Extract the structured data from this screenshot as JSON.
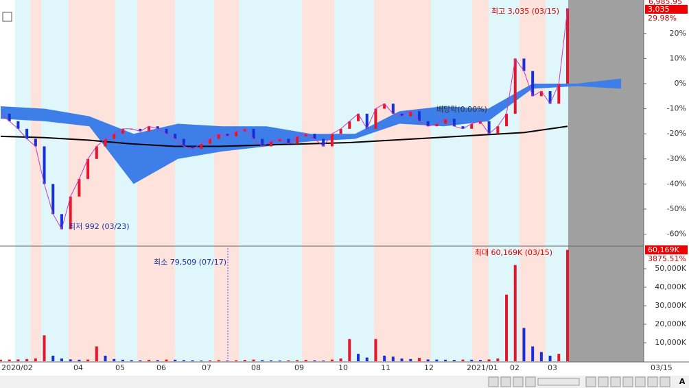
{
  "price_panel": {
    "high_note": "최고 3,035 (03/15)",
    "low_note": "최저 992 (03/23)",
    "dividend_note": "배당락(0.00%)",
    "axis_top_labels": [
      "6,985.95",
      "3,035",
      "29.98%"
    ],
    "ylim": [
      -65,
      33
    ],
    "yticks": [
      {
        "value": 20,
        "label": "20%"
      },
      {
        "value": 10,
        "label": "10%"
      },
      {
        "value": 0,
        "label": "0%"
      },
      {
        "value": -10,
        "label": "-10%"
      },
      {
        "value": -20,
        "label": "-20%"
      },
      {
        "value": -30,
        "label": "-30%"
      },
      {
        "value": -40,
        "label": "-40%"
      },
      {
        "value": -50,
        "label": "-50%"
      },
      {
        "value": -60,
        "label": "-60%"
      }
    ],
    "close": [
      -12,
      -15,
      -18,
      -22,
      -25,
      -40,
      -52,
      -58,
      -45,
      -38,
      -30,
      -25,
      -22,
      -20,
      -18,
      -18,
      -19,
      -17,
      -18,
      -20,
      -22,
      -25,
      -26,
      -24,
      -22,
      -20,
      -21,
      -19,
      -18,
      -22,
      -25,
      -23,
      -22,
      -24,
      -21,
      -20,
      -22,
      -25,
      -20,
      -18,
      -15,
      -12,
      -18,
      -10,
      -8,
      -12,
      -13,
      -11,
      -15,
      -17,
      -16,
      -14,
      -17,
      -18,
      -16,
      -15,
      -20,
      -17,
      -12,
      10,
      5,
      -5,
      -3,
      -8,
      0,
      29.98
    ],
    "moving_average": [
      -21,
      -21.5,
      -22.5,
      -24,
      -25,
      -25,
      -24.5,
      -24,
      -23.5,
      -22.5,
      -21.5,
      -20.5,
      -19.5,
      -17
    ],
    "cloud_upper": [
      -9,
      -10,
      -13,
      -20,
      -16,
      -17,
      -17,
      -20,
      -20,
      -11,
      -9,
      -10,
      0,
      0,
      2
    ],
    "cloud_lower": [
      -14,
      -15,
      -17,
      -40,
      -30,
      -27,
      -25,
      -23,
      -22,
      -16,
      -17,
      -15,
      -2,
      -1,
      -2
    ]
  },
  "volume_panel": {
    "max_note": "최대 60,169K (03/15)",
    "min_note": "최소 79,509 (07/17)",
    "axis_top_labels": [
      "60,169K",
      "3875.51%"
    ],
    "ylim": [
      0,
      61500
    ],
    "yticks": [
      {
        "value": 50000,
        "label": "50,000K"
      },
      {
        "value": 40000,
        "label": "40,000K"
      },
      {
        "value": 30000,
        "label": "30,000K"
      },
      {
        "value": 20000,
        "label": "20,000K"
      },
      {
        "value": 10000,
        "label": "10,000K"
      }
    ],
    "volume": [
      800,
      900,
      1000,
      1200,
      1500,
      14000,
      3000,
      1500,
      1000,
      800,
      900,
      8000,
      3000,
      1200,
      800,
      600,
      500,
      700,
      600,
      900,
      800,
      600,
      500,
      400,
      500,
      600,
      400,
      500,
      700,
      900,
      600,
      500,
      400,
      500,
      600,
      700,
      500,
      400,
      900,
      1500,
      12000,
      4000,
      2000,
      12000,
      3000,
      2500,
      1500,
      1200,
      1800,
      1000,
      900,
      800,
      700,
      900,
      800,
      700,
      1000,
      1500,
      36000,
      52000,
      18000,
      8000,
      5000,
      3000,
      4000,
      60169
    ]
  },
  "x_axis": {
    "labels": [
      "2020/02",
      "04",
      "05",
      "06",
      "07",
      "08",
      "09",
      "10",
      "11",
      "12",
      "2021/01",
      "02",
      "03"
    ],
    "last_date": "03/15"
  },
  "toolbar": {
    "font_button": "A"
  }
}
